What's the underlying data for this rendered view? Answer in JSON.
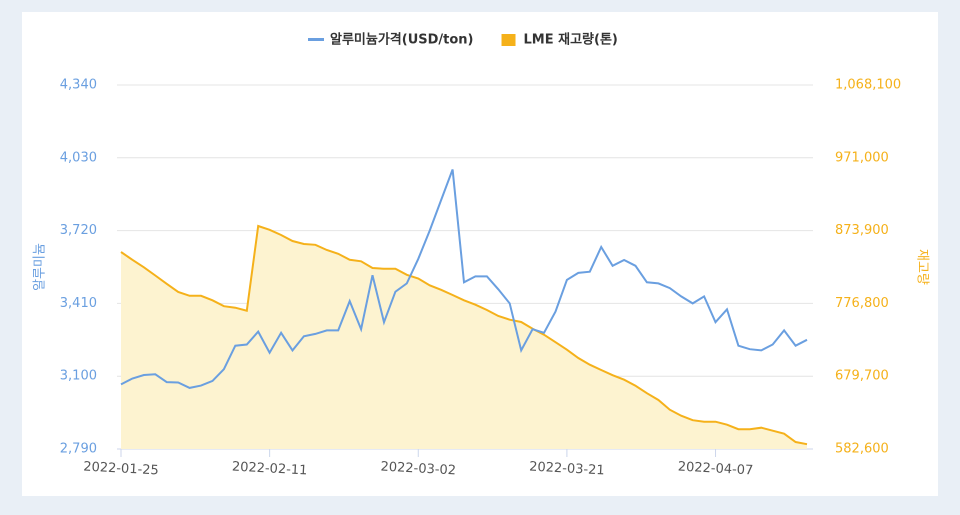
{
  "chart_data": {
    "type": "line",
    "categories": [
      "2022-01-25",
      null,
      null,
      null,
      null,
      null,
      null,
      null,
      null,
      null,
      null,
      null,
      null,
      "2022-02-11",
      null,
      null,
      null,
      null,
      null,
      null,
      null,
      null,
      null,
      null,
      null,
      null,
      "2022-03-02",
      null,
      null,
      null,
      null,
      null,
      null,
      null,
      null,
      null,
      null,
      null,
      null,
      "2022-03-21",
      null,
      null,
      null,
      null,
      null,
      null,
      null,
      null,
      null,
      null,
      null,
      null,
      "2022-04-07",
      null,
      null,
      null,
      null,
      null,
      null,
      null,
      null
    ],
    "series": [
      {
        "name": "알루미늄가격(USD/ton)",
        "color": "#6a9fe0",
        "values": [
          3065,
          3090,
          3105,
          3108,
          3075,
          3073,
          3050,
          3060,
          3080,
          3130,
          3230,
          3235,
          3290,
          3200,
          3285,
          3210,
          3270,
          3280,
          3295,
          3295,
          3420,
          3300,
          3530,
          3330,
          3460,
          3495,
          3600,
          3720,
          3850,
          3980,
          3500,
          3525,
          3525,
          3470,
          3410,
          3210,
          3300,
          3285,
          3375,
          3510,
          3540,
          3545,
          3650,
          3570,
          3595,
          3570,
          3500,
          3495,
          3475,
          3440,
          3410,
          3440,
          3330,
          3385,
          3230,
          3215,
          3210,
          3235,
          3295,
          3230,
          3255
        ]
      },
      {
        "name": "LME 재고량(톤)",
        "color": "#f5b11a",
        "axis": "y2",
        "area": true,
        "values": [
          845400,
          835000,
          825000,
          814000,
          803000,
          792000,
          787000,
          787000,
          781000,
          773000,
          771000,
          767000,
          880000,
          875000,
          868000,
          860000,
          856000,
          855000,
          848000,
          843000,
          835000,
          833000,
          824000,
          823000,
          823000,
          815000,
          810000,
          801000,
          795000,
          788000,
          781000,
          775000,
          768000,
          760000,
          755000,
          752000,
          743000,
          735000,
          725000,
          715000,
          704000,
          695000,
          688000,
          681000,
          675000,
          667000,
          657000,
          648000,
          635000,
          627000,
          621000,
          619000,
          619000,
          615000,
          609000,
          609000,
          611000,
          607000,
          603000,
          592000,
          589000
        ]
      }
    ],
    "ylabel": "알루미늄",
    "y2label": "재고량",
    "ylim": [
      2790,
      4340
    ],
    "yticks": [
      {
        "value": 2790,
        "label": "2,790"
      },
      {
        "value": 3100,
        "label": "3,100"
      },
      {
        "value": 3410,
        "label": "3,410"
      },
      {
        "value": 3720,
        "label": "3,720"
      },
      {
        "value": 4030,
        "label": "4,030"
      },
      {
        "value": 4340,
        "label": "4,340"
      }
    ],
    "y2lim": [
      582600,
      1068100
    ],
    "y2ticks": [
      {
        "value": 582600,
        "label": "582,600"
      },
      {
        "value": 679700,
        "label": "679,700"
      },
      {
        "value": 776800,
        "label": "776,800"
      },
      {
        "value": 873900,
        "label": "873,900"
      },
      {
        "value": 971000,
        "label": "971,000"
      },
      {
        "value": 1068100,
        "label": "1,068,100"
      }
    ],
    "grid": true,
    "legend": "top"
  }
}
